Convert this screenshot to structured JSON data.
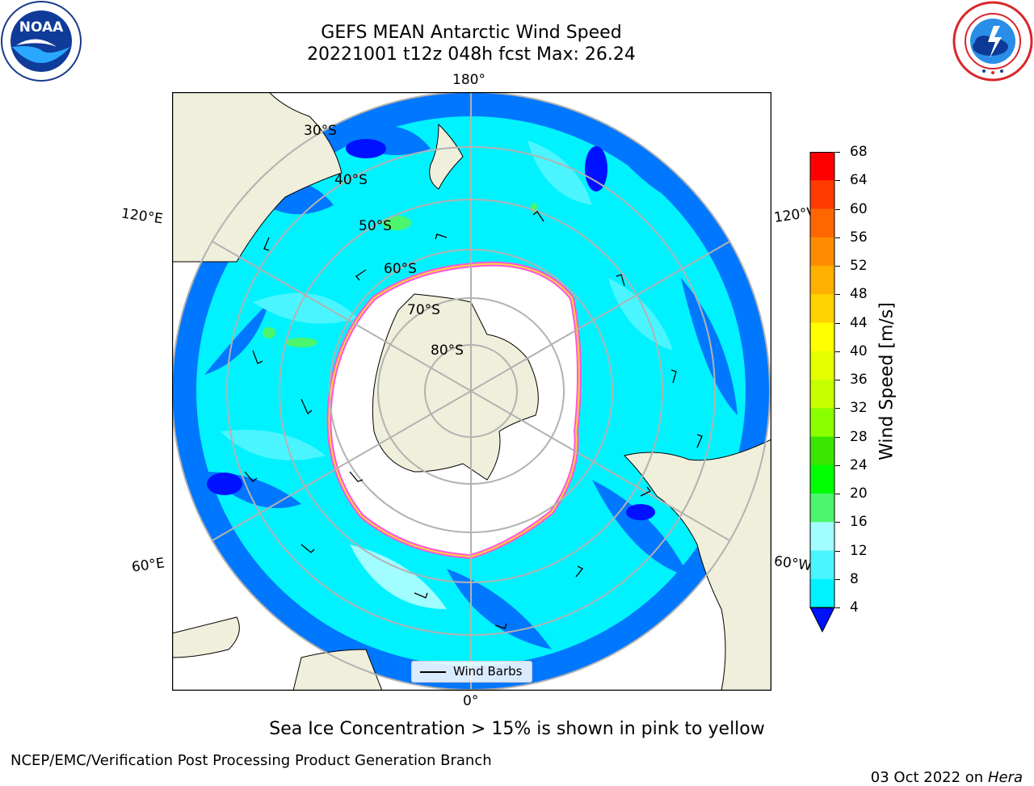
{
  "title": {
    "line1": "GEFS MEAN Antarctic Wind Speed",
    "line2": "20221001 t12z 048h fcst   Max: 26.24"
  },
  "logos": {
    "left_icon": "noaa-logo",
    "left_text": "NOAA",
    "left_ring_text": "NATIONAL OCEANIC AND ATMOSPHERIC ADMINISTRATION · U.S. DEPARTMENT OF COMMERCE",
    "right_icon": "nws-logo",
    "right_ring_text": "NATIONAL WEATHER SERVICE"
  },
  "map": {
    "projection": "south-polar-stereographic",
    "longitude_labels": {
      "top": "180°",
      "bottom": "0°",
      "upper_left": "120°E",
      "lower_left": "60°E",
      "upper_right": "120°W",
      "lower_right": "60°W"
    },
    "latitude_labels": [
      "30°S",
      "40°S",
      "50°S",
      "60°S",
      "70°S",
      "80°S"
    ],
    "legend_label": "Wind Barbs",
    "colors": {
      "land": "#efefdb",
      "ocean_4_8": "#0079ff",
      "ocean_8_12": "#00f4ff",
      "ocean_12_16": "#4ef5fd",
      "ocean_16_20": "#a0fcff",
      "ocean_20_24": "#55f56a",
      "ocean_below_4": "#0011ff",
      "sea_ice_edge_pink": "#ff55dd",
      "sea_ice_edge_yellow": "#ffd23a",
      "graticule": "#b2b2b2"
    }
  },
  "colorbar": {
    "label": "Wind Speed [m/s]",
    "ticks": [
      "68",
      "64",
      "60",
      "56",
      "52",
      "48",
      "44",
      "40",
      "36",
      "32",
      "28",
      "24",
      "20",
      "16",
      "12",
      "8",
      "4"
    ],
    "colors": [
      "#ff0000",
      "#ff3a00",
      "#ff6600",
      "#ff8c00",
      "#ffb000",
      "#ffd200",
      "#ffff00",
      "#e4ff00",
      "#c6ff00",
      "#8aff00",
      "#39e600",
      "#00ff00",
      "#4bf66d",
      "#a1fdff",
      "#4bf5ff",
      "#00f2ff",
      "#0077ff"
    ],
    "under_color": "#0011ff"
  },
  "note": "Sea Ice Concentration > 15% is shown in pink to yellow",
  "footer": {
    "left": "NCEP/EMC/Verification Post Processing Product Generation Branch",
    "right_date": "03 Oct 2022 on ",
    "right_machine": "Hera"
  }
}
